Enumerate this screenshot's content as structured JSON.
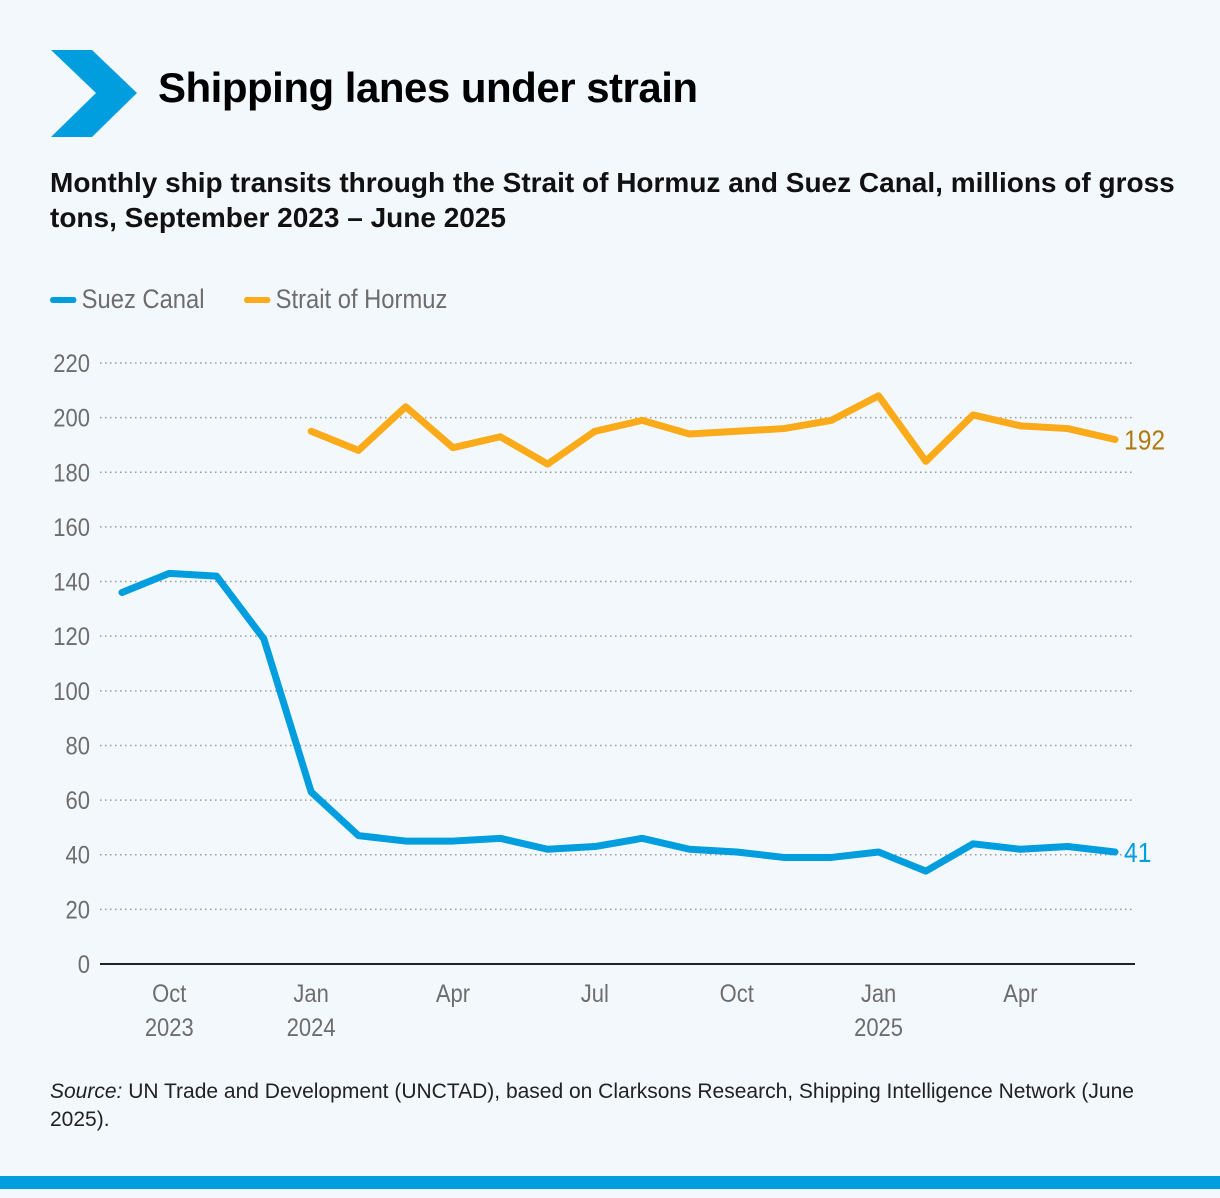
{
  "header": {
    "title": "Shipping lanes under strain",
    "logo_color": "#009ede"
  },
  "chart_data": {
    "type": "line",
    "title": "Shipping lanes under strain",
    "subtitle": "Monthly ship transits through the Strait of Hormuz and Suez Canal, millions of gross tons, September 2023 – June 2025",
    "x": [
      "2023-09",
      "2023-10",
      "2023-11",
      "2023-12",
      "2024-01",
      "2024-02",
      "2024-03",
      "2024-04",
      "2024-05",
      "2024-06",
      "2024-07",
      "2024-08",
      "2024-09",
      "2024-10",
      "2024-11",
      "2024-12",
      "2025-01",
      "2025-02",
      "2025-03",
      "2025-04",
      "2025-05",
      "2025-06"
    ],
    "x_ticks": [
      {
        "x": "2023-10",
        "label": "Oct",
        "year": "2023"
      },
      {
        "x": "2024-01",
        "label": "Jan",
        "year": "2024"
      },
      {
        "x": "2024-04",
        "label": "Apr",
        "year": ""
      },
      {
        "x": "2024-07",
        "label": "Jul",
        "year": ""
      },
      {
        "x": "2024-10",
        "label": "Oct",
        "year": ""
      },
      {
        "x": "2025-01",
        "label": "Jan",
        "year": "2025"
      },
      {
        "x": "2025-04",
        "label": "Apr",
        "year": ""
      }
    ],
    "y_ticks": [
      "0",
      "20",
      "40",
      "60",
      "80",
      "100",
      "120",
      "140",
      "160",
      "180",
      "200",
      "220"
    ],
    "ylim": [
      0,
      220
    ],
    "grid": "horizontal dotted",
    "legend": "top-left",
    "series": [
      {
        "name": "Suez Canal",
        "color": "#009ede",
        "end_label": "41",
        "values": [
          136,
          143,
          142,
          119,
          63,
          47,
          45,
          45,
          46,
          42,
          43,
          46,
          42,
          41,
          39,
          39,
          41,
          34,
          44,
          42,
          43,
          41
        ]
      },
      {
        "name": "Strait of Hormuz",
        "color": "#fbaa19",
        "end_label": "192",
        "end_label_color": "#b07a10",
        "values": [
          null,
          null,
          null,
          null,
          195,
          188,
          204,
          189,
          193,
          183,
          195,
          199,
          194,
          195,
          196,
          199,
          208,
          184,
          201,
          197,
          196,
          192
        ]
      }
    ]
  },
  "source": {
    "label": "Source:",
    "text": " UN Trade and Development (UNCTAD), based on Clarksons Research, Shipping Intelligence Network (June 2025)."
  }
}
